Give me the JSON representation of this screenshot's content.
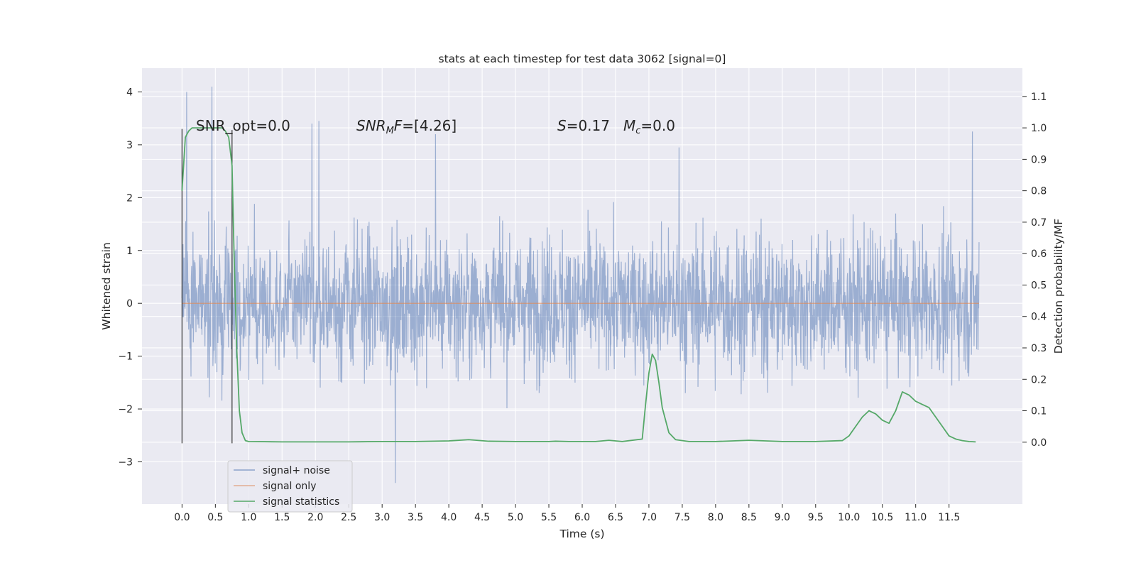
{
  "chart_data": {
    "type": "line",
    "title": "stats at each timestep for test data 3062 [signal=0]",
    "xlabel": "Time (s)",
    "ylabel": "Whitened strain",
    "y2label": "Detection probability/MF",
    "xlim": [
      -0.6,
      12.6
    ],
    "ylim": [
      -3.8,
      4.45
    ],
    "y2lim": [
      -0.197,
      1.19
    ],
    "x_ticks": [
      "0.0",
      "0.5",
      "1.0",
      "1.5",
      "2.0",
      "2.5",
      "3.0",
      "3.5",
      "4.0",
      "4.5",
      "5.0",
      "5.5",
      "6.0",
      "6.5",
      "7.0",
      "7.5",
      "8.0",
      "8.5",
      "9.0",
      "9.5",
      "10.0",
      "10.5",
      "11.0",
      "11.5"
    ],
    "y_ticks": [
      -3,
      -2,
      -1,
      0,
      1,
      2,
      3,
      4
    ],
    "y_tick_labels": [
      "−3",
      "−2",
      "−1",
      "0",
      "1",
      "2",
      "3",
      "4"
    ],
    "y2_ticks": [
      0.0,
      0.1,
      0.2,
      0.3,
      0.4,
      0.5,
      0.6,
      0.7,
      0.8,
      0.9,
      1.0,
      1.1
    ],
    "y2_tick_labels": [
      "0.0",
      "0.1",
      "0.2",
      "0.3",
      "0.4",
      "0.5",
      "0.6",
      "0.7",
      "0.8",
      "0.9",
      "1.0",
      "1.1"
    ],
    "grid": true,
    "legend_position": "lower-left",
    "annotations": {
      "snr_opt": "SNR_opt=0.0",
      "snr_mf_name": "SNR",
      "snr_mf_sub": "M",
      "snr_mf_rest": "F=[4.26]",
      "stat_s": "S",
      "stat_s_val": "=0.17",
      "mc_name": "M",
      "mc_sub": "c",
      "mc_val": "=0.0"
    },
    "series": [
      {
        "name": "signal+ noise",
        "color": "#4c72b0",
        "t_range": [
          0.0,
          11.95
        ],
        "envelope": "dense noise, mostly within ±2, peaks near 4.1 at t≈0.45 and near -3.4 at t≈3.2"
      },
      {
        "name": "signal only",
        "color": "#dd8452",
        "x": [
          0.0,
          11.95
        ],
        "y": [
          0.0,
          0.0
        ]
      },
      {
        "name": "signal statistics",
        "color": "#55a868",
        "axis": "right",
        "x": [
          0.0,
          0.05,
          0.1,
          0.15,
          0.2,
          0.3,
          0.4,
          0.5,
          0.6,
          0.65,
          0.7,
          0.75,
          0.78,
          0.82,
          0.86,
          0.9,
          0.95,
          1.0,
          1.5,
          2.0,
          2.5,
          3.0,
          3.5,
          4.0,
          4.3,
          4.6,
          5.0,
          5.5,
          5.6,
          5.8,
          6.0,
          6.2,
          6.4,
          6.6,
          6.9,
          6.95,
          7.0,
          7.05,
          7.1,
          7.15,
          7.2,
          7.3,
          7.4,
          7.6,
          8.0,
          8.5,
          9.0,
          9.5,
          9.9,
          10.0,
          10.1,
          10.2,
          10.3,
          10.4,
          10.5,
          10.6,
          10.7,
          10.8,
          10.9,
          11.0,
          11.1,
          11.2,
          11.3,
          11.4,
          11.5,
          11.6,
          11.7,
          11.8,
          11.9
        ],
        "y": [
          0.8,
          0.97,
          0.99,
          1.0,
          1.0,
          1.0,
          1.0,
          1.0,
          1.0,
          0.99,
          0.97,
          0.88,
          0.6,
          0.3,
          0.1,
          0.03,
          0.005,
          0.002,
          0.001,
          0.001,
          0.001,
          0.002,
          0.002,
          0.004,
          0.008,
          0.003,
          0.002,
          0.002,
          0.003,
          0.002,
          0.002,
          0.002,
          0.006,
          0.002,
          0.01,
          0.12,
          0.22,
          0.28,
          0.26,
          0.19,
          0.11,
          0.03,
          0.008,
          0.002,
          0.002,
          0.006,
          0.002,
          0.002,
          0.005,
          0.02,
          0.05,
          0.08,
          0.1,
          0.09,
          0.07,
          0.06,
          0.1,
          0.16,
          0.15,
          0.13,
          0.12,
          0.11,
          0.08,
          0.05,
          0.02,
          0.01,
          0.005,
          0.002,
          0.001
        ]
      }
    ],
    "markers": [
      {
        "x": 0.0,
        "y_from": -2.65,
        "y_to": 3.3
      },
      {
        "x": 0.75,
        "y_from": -2.65,
        "y_to": 3.28
      }
    ]
  }
}
